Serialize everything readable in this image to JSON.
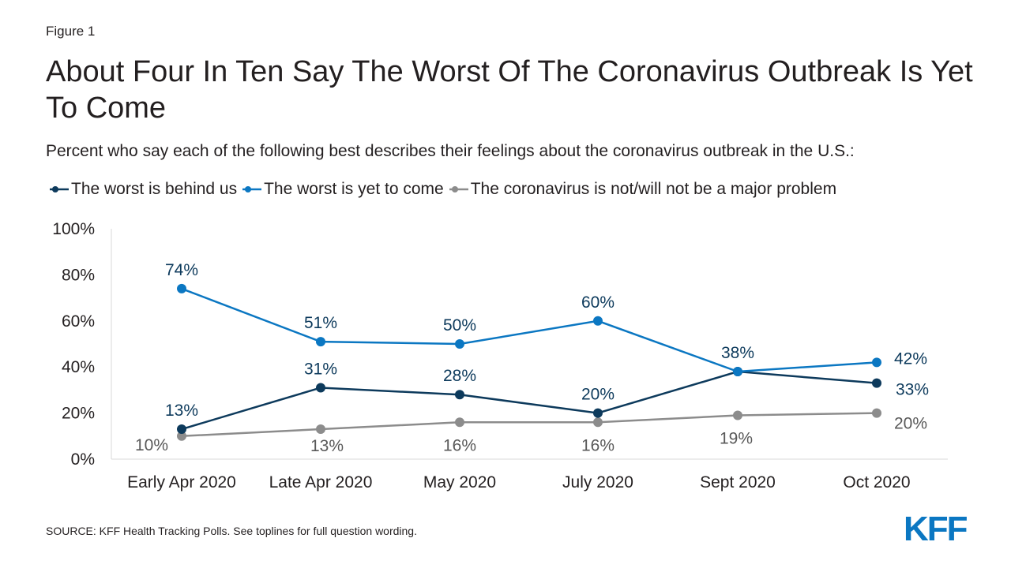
{
  "figure_label": "Figure 1",
  "logo_text": "KFF",
  "source": "SOURCE: KFF Health Tracking Polls. See toplines for full question wording.",
  "chart_data": {
    "type": "line",
    "title": "About Four In Ten Say The Worst Of The Coronavirus Outbreak Is Yet To Come",
    "subtitle": "Percent who say each of the following best describes their feelings about the coronavirus outbreak in the U.S.:",
    "categories": [
      "Early Apr 2020",
      "Late Apr 2020",
      "May 2020",
      "July 2020",
      "Sept 2020",
      "Oct 2020"
    ],
    "ylim": [
      0,
      100
    ],
    "yticks": [
      "0%",
      "20%",
      "40%",
      "60%",
      "80%",
      "100%"
    ],
    "grid": false,
    "legend_position": "top",
    "series": [
      {
        "name": "The worst is behind us",
        "color": "#0d3a5c",
        "values": [
          13,
          31,
          28,
          20,
          38,
          33
        ],
        "labels": [
          "13%",
          "31%",
          "28%",
          "20%",
          "38%",
          "33%"
        ]
      },
      {
        "name": "The worst is yet to come",
        "color": "#0b77c2",
        "values": [
          74,
          51,
          50,
          60,
          38,
          42
        ],
        "labels": [
          "74%",
          "51%",
          "50%",
          "60%",
          "",
          "42%"
        ]
      },
      {
        "name": "The coronavirus is not/will not be a major problem",
        "color": "#8c8c8c",
        "values": [
          10,
          13,
          16,
          16,
          19,
          20
        ],
        "labels": [
          "10%",
          "13%",
          "16%",
          "16%",
          "19%",
          "20%"
        ]
      }
    ]
  }
}
